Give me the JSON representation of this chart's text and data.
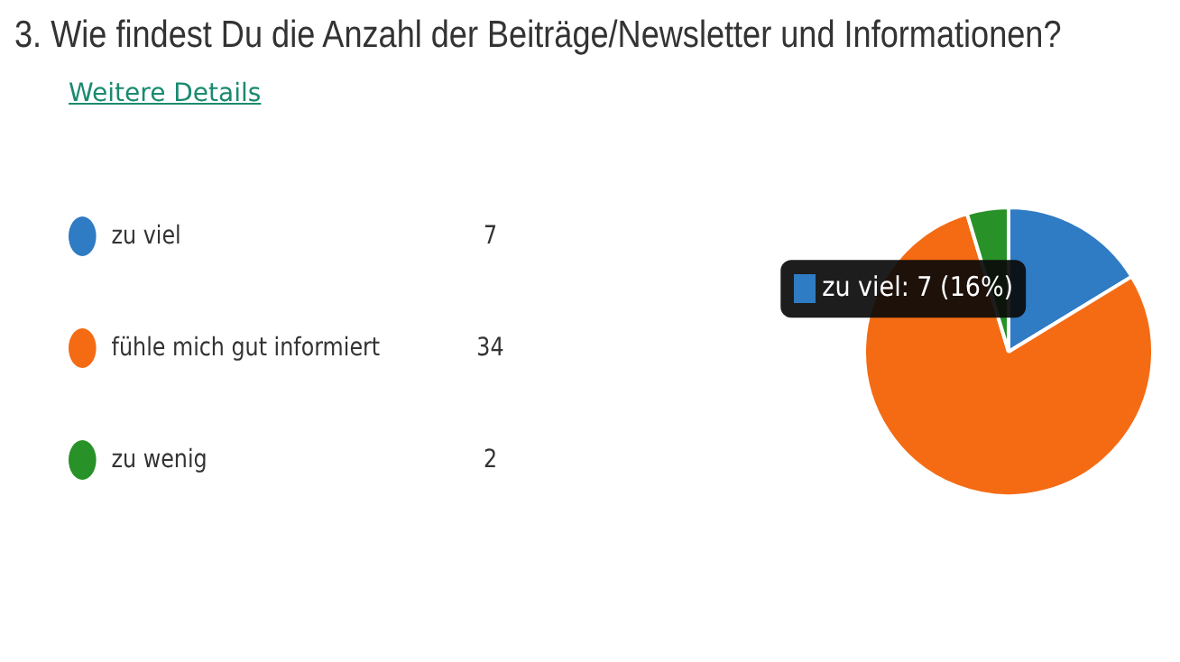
{
  "chart_data": {
    "type": "pie",
    "title": "3. Wie findest Du die Anzahl der Beiträge/Newsletter und Informationen?",
    "subtitle": "Weitere Details",
    "categories": [
      "zu viel",
      "fühle mich gut informiert",
      "zu wenig"
    ],
    "values": [
      7,
      34,
      2
    ],
    "colors": [
      "#2f7bc4",
      "#f46b14",
      "#289128"
    ],
    "data_labels": true,
    "legend": "left",
    "annotations": [
      "zu viel: 7 (16%)"
    ]
  }
}
